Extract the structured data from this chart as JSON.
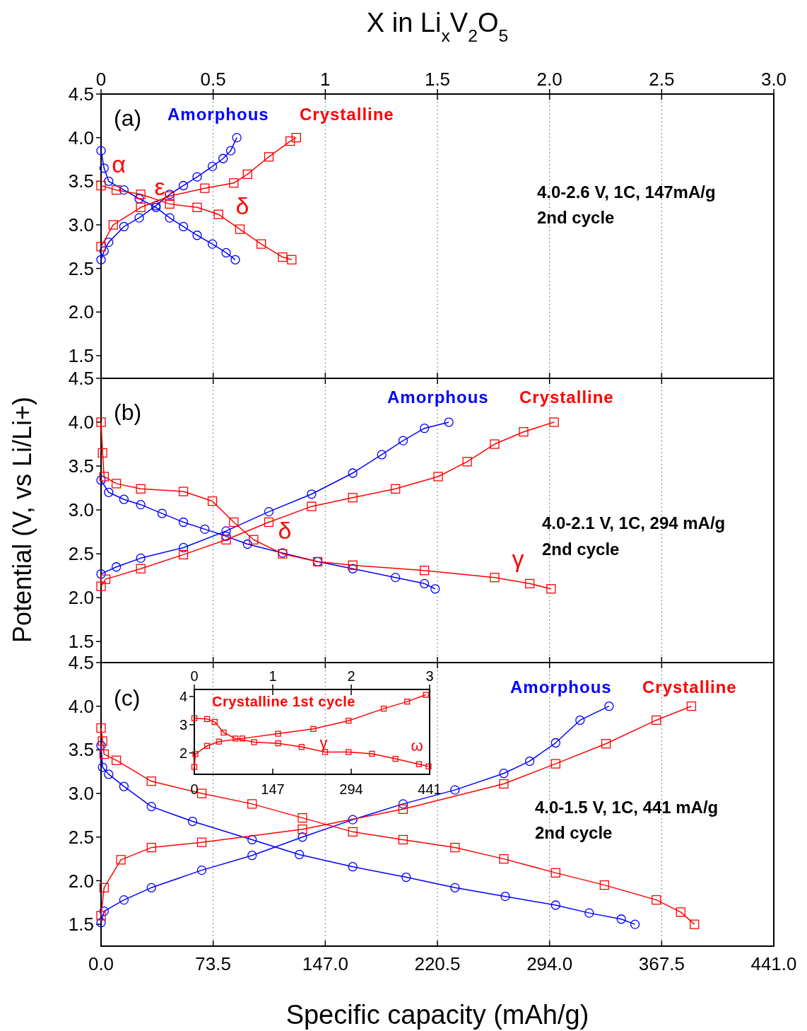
{
  "chart_data": [
    {
      "type": "line",
      "x2label": "X in Li$_{x}$V$_{2}$O$_{5}$",
      "xlim": [
        0,
        441
      ],
      "xticks": [
        0,
        73.5,
        147,
        220.5,
        294,
        367.5,
        441
      ],
      "x2lim": [
        0,
        3
      ],
      "x2ticks": [
        0,
        0.5,
        1,
        1.5,
        {
          "value": 2,
          "label": "2.0"
        },
        2.5,
        {
          "value": 3,
          "label": "3.0"
        }
      ],
      "ylim": [
        1.24,
        4.5
      ],
      "yticks": [
        1.5,
        {
          "value": 2,
          "label": "2.0"
        },
        2.5,
        {
          "value": 3,
          "label": "3.0"
        },
        3.5,
        {
          "value": 4,
          "label": "4.0"
        },
        4.5
      ],
      "grid": "x",
      "tick_labels": "y",
      "legend": "top left",
      "series": [
        {
          "name": "Amorphous",
          "color": "#0000ff",
          "marker": "circle",
          "x": [
            0,
            2,
            5,
            15,
            25,
            36,
            45,
            54,
            63,
            73,
            82,
            88
          ],
          "values": [
            3.85,
            3.65,
            3.5,
            3.4,
            3.3,
            3.2,
            3.08,
            2.98,
            2.88,
            2.78,
            2.68,
            2.6
          ]
        },
        {
          "color": "#0000ff",
          "marker": "circle",
          "x": [
            0,
            2,
            5,
            15,
            25,
            36,
            45,
            54,
            63,
            73,
            80,
            85,
            89
          ],
          "values": [
            2.6,
            2.7,
            2.8,
            2.98,
            3.08,
            3.22,
            3.35,
            3.45,
            3.55,
            3.67,
            3.76,
            3.85,
            4.0
          ]
        },
        {
          "name": "Crystalline",
          "color": "#ff0000",
          "marker": "square",
          "x": [
            0,
            10,
            26,
            45,
            63,
            77,
            91,
            105,
            119,
            125
          ],
          "values": [
            3.45,
            3.4,
            3.35,
            3.24,
            3.2,
            3.12,
            2.95,
            2.78,
            2.63,
            2.6
          ]
        },
        {
          "color": "#ff0000",
          "marker": "square",
          "x": [
            0,
            8,
            26,
            45,
            68,
            87,
            96,
            110,
            124,
            128
          ],
          "values": [
            2.75,
            3.0,
            3.2,
            3.33,
            3.42,
            3.48,
            3.58,
            3.78,
            3.96,
            4.0
          ]
        }
      ],
      "annotations": [
        "(a)",
        "4.0-2.6 V, 1C, 147mA/g",
        "2nd cycle",
        "α",
        "ε",
        "δ"
      ]
    },
    {
      "type": "line",
      "ylabel": "Potential (V, vs Li/Li+)",
      "xlim": [
        0,
        441
      ],
      "xticks": [
        0,
        73.5,
        147,
        220.5,
        294,
        367.5,
        441
      ],
      "ylim": [
        1.26,
        4.5
      ],
      "yticks": [
        1.5,
        {
          "value": 2,
          "label": "2.0"
        },
        2.5,
        {
          "value": 3,
          "label": "3.0"
        },
        3.5,
        {
          "value": 4,
          "label": "4.0"
        },
        4.5
      ],
      "grid": "x",
      "tick_labels": "y",
      "legend": "top right",
      "series": [
        {
          "name": "Amorphous",
          "color": "#0000ff",
          "marker": "circle",
          "x": [
            0,
            5,
            15,
            26,
            40,
            54,
            68,
            82,
            96,
            119,
            142,
            165,
            193,
            212,
            219
          ],
          "values": [
            3.34,
            3.2,
            3.12,
            3.06,
            2.96,
            2.86,
            2.78,
            2.7,
            2.61,
            2.51,
            2.41,
            2.33,
            2.23,
            2.16,
            2.1
          ]
        },
        {
          "color": "#0000ff",
          "marker": "circle",
          "x": [
            0,
            10,
            26,
            54,
            82,
            110,
            138,
            165,
            184,
            198,
            212,
            228
          ],
          "values": [
            2.27,
            2.35,
            2.45,
            2.57,
            2.76,
            2.98,
            3.18,
            3.42,
            3.63,
            3.79,
            3.93,
            4.0
          ]
        },
        {
          "name": "Crystalline",
          "color": "#ff0000",
          "marker": "square",
          "x": [
            0,
            1,
            2,
            10,
            26,
            54,
            73,
            87,
            100,
            119,
            142,
            165,
            212,
            258,
            281,
            295
          ],
          "values": [
            4.0,
            3.65,
            3.38,
            3.3,
            3.24,
            3.21,
            3.1,
            2.86,
            2.66,
            2.5,
            2.41,
            2.37,
            2.31,
            2.23,
            2.16,
            2.1
          ]
        },
        {
          "color": "#ff0000",
          "marker": "square",
          "x": [
            0,
            3,
            26,
            54,
            82,
            110,
            138,
            165,
            193,
            221,
            240,
            258,
            277,
            297
          ],
          "values": [
            2.13,
            2.21,
            2.33,
            2.49,
            2.66,
            2.86,
            3.04,
            3.14,
            3.24,
            3.38,
            3.55,
            3.75,
            3.89,
            4.0
          ]
        }
      ],
      "annotations": [
        "(b)",
        "4.0-2.1 V, 1C, 294 mA/g",
        "2nd cycle",
        "δ",
        "γ"
      ]
    },
    {
      "type": "line",
      "xlabel": "Specific capacity (mAh/g)",
      "xlim": [
        0,
        441
      ],
      "xticks": [
        {
          "value": 0,
          "label": "0.0"
        },
        73.5,
        {
          "value": 147,
          "label": "147.0"
        },
        220.5,
        {
          "value": 294,
          "label": "294.0"
        },
        367.5,
        {
          "value": 441,
          "label": "441.0"
        }
      ],
      "ylim": [
        1.25,
        4.5
      ],
      "yticks": [
        1.5,
        {
          "value": 2,
          "label": "2.0"
        },
        2.5,
        {
          "value": 3,
          "label": "3.0"
        },
        3.5,
        {
          "value": 4,
          "label": "4.0"
        },
        4.5
      ],
      "grid": "x",
      "legend": "top right",
      "series": [
        {
          "name": "Amorphous",
          "color": "#0000ff",
          "marker": "circle",
          "x": [
            0,
            1,
            5,
            15,
            33,
            60,
            99,
            130,
            165,
            200,
            232,
            265,
            298,
            320,
            341,
            350
          ],
          "values": [
            3.55,
            3.3,
            3.22,
            3.08,
            2.85,
            2.68,
            2.47,
            2.3,
            2.16,
            2.04,
            1.92,
            1.82,
            1.72,
            1.63,
            1.56,
            1.5
          ]
        },
        {
          "color": "#0000ff",
          "marker": "circle",
          "x": [
            0,
            2,
            15,
            33,
            66,
            99,
            132,
            165,
            198,
            232,
            264,
            281,
            298,
            314,
            333
          ],
          "values": [
            1.52,
            1.65,
            1.78,
            1.92,
            2.12,
            2.29,
            2.5,
            2.7,
            2.88,
            3.04,
            3.23,
            3.37,
            3.58,
            3.84,
            4.0
          ]
        },
        {
          "name": "Crystalline",
          "color": "#ff0000",
          "marker": "square",
          "x": [
            0,
            1,
            2,
            10,
            33,
            66,
            99,
            132,
            165,
            198,
            232,
            264,
            298,
            330,
            364,
            380,
            389
          ],
          "values": [
            3.75,
            3.6,
            3.45,
            3.38,
            3.14,
            3.0,
            2.88,
            2.72,
            2.56,
            2.47,
            2.38,
            2.25,
            2.09,
            1.95,
            1.78,
            1.64,
            1.5
          ]
        },
        {
          "color": "#ff0000",
          "marker": "square",
          "x": [
            0,
            2,
            13,
            33,
            66,
            132,
            198,
            264,
            298,
            331,
            364,
            387
          ],
          "values": [
            1.6,
            1.92,
            2.24,
            2.38,
            2.44,
            2.59,
            2.82,
            3.11,
            3.34,
            3.57,
            3.84,
            4.0
          ]
        }
      ],
      "annotations": [
        "(c)",
        "4.0-1.5 V, 1C, 441 mA/g",
        "2nd cycle"
      ]
    },
    {
      "type": "line",
      "title": "Crystalline 1st cycle",
      "xlim": [
        0,
        441
      ],
      "xticks": [
        0,
        147,
        294,
        441
      ],
      "x2lim": [
        0,
        3
      ],
      "x2ticks": [
        0,
        1,
        2,
        3
      ],
      "ylim": [
        1.24,
        4.25
      ],
      "yticks": [
        2,
        3,
        4
      ],
      "series": [
        {
          "color": "#ff0000",
          "marker": "square",
          "x": [
            0,
            24,
            38,
            55,
            77,
            112,
            157,
            201,
            245,
            289,
            333,
            377,
            421,
            439
          ],
          "values": [
            3.23,
            3.2,
            3.1,
            2.72,
            2.51,
            2.38,
            2.34,
            2.21,
            2.03,
            2.03,
            1.97,
            1.79,
            1.6,
            1.52
          ]
        },
        {
          "color": "#ff0000",
          "marker": "square",
          "x": [
            0,
            2,
            24,
            46,
            90,
            157,
            223,
            289,
            355,
            399,
            434
          ],
          "values": [
            1.5,
            1.96,
            2.25,
            2.4,
            2.51,
            2.68,
            2.85,
            3.14,
            3.57,
            3.82,
            4.06
          ]
        }
      ],
      "annotations": [
        "γ",
        "ω"
      ]
    }
  ]
}
